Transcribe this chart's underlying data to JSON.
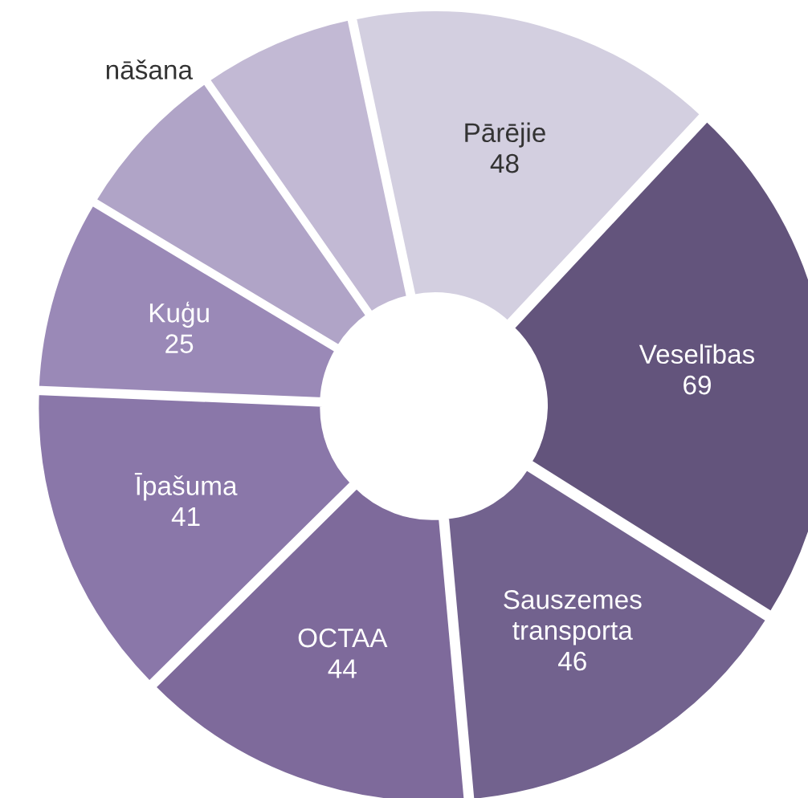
{
  "chart_data": {
    "type": "donut",
    "categories": [
      "Pārējie",
      "Veselības",
      "Sauszemes\ntransporta",
      "OCTAA",
      "Īpašuma",
      "Kuģu",
      null,
      null
    ],
    "values": [
      48,
      69,
      46,
      44,
      41,
      25,
      21,
      20
    ],
    "value_labels": [
      "48",
      "69",
      "46",
      "44",
      "41",
      "25",
      null,
      null
    ],
    "colors": [
      "#d3cfe0",
      "#63547c",
      "#72628e",
      "#7e6a9b",
      "#8a77a9",
      "#9a89b7",
      "#b0a4c7",
      "#c2b9d4"
    ],
    "annotations": [
      "nāšana"
    ],
    "legend": false
  }
}
